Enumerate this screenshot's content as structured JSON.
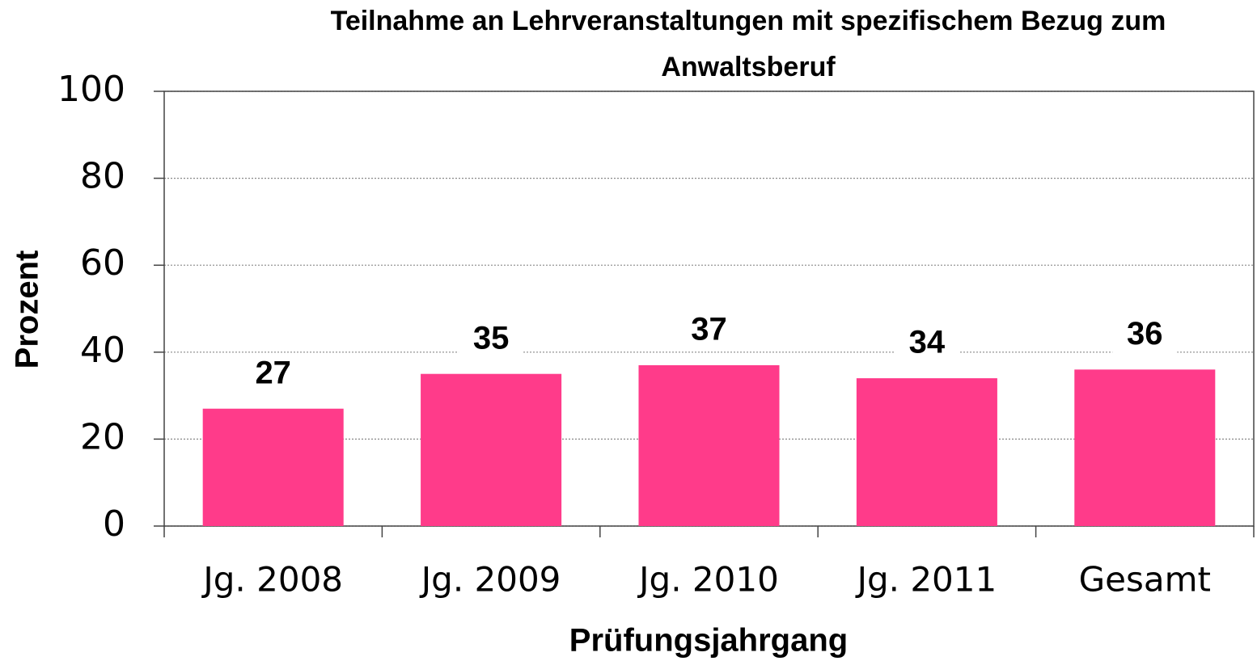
{
  "chart_data": {
    "type": "bar",
    "title": [
      "Teilnahme an Lehrveranstaltungen mit spezifischem Bezug zum",
      "Anwaltsberuf"
    ],
    "x_label": "Prüfungsjahrgang",
    "y_label": "Prozent",
    "categories": [
      "Jg. 2008",
      "Jg. 2009",
      "Jg. 2010",
      "Jg. 2011",
      "Gesamt"
    ],
    "values": [
      27,
      35,
      37,
      34,
      36
    ],
    "color": "#ff3b8a",
    "ylim": [
      0,
      100
    ],
    "yticks": [
      0,
      20,
      40,
      60,
      80,
      100
    ],
    "grid": true
  }
}
